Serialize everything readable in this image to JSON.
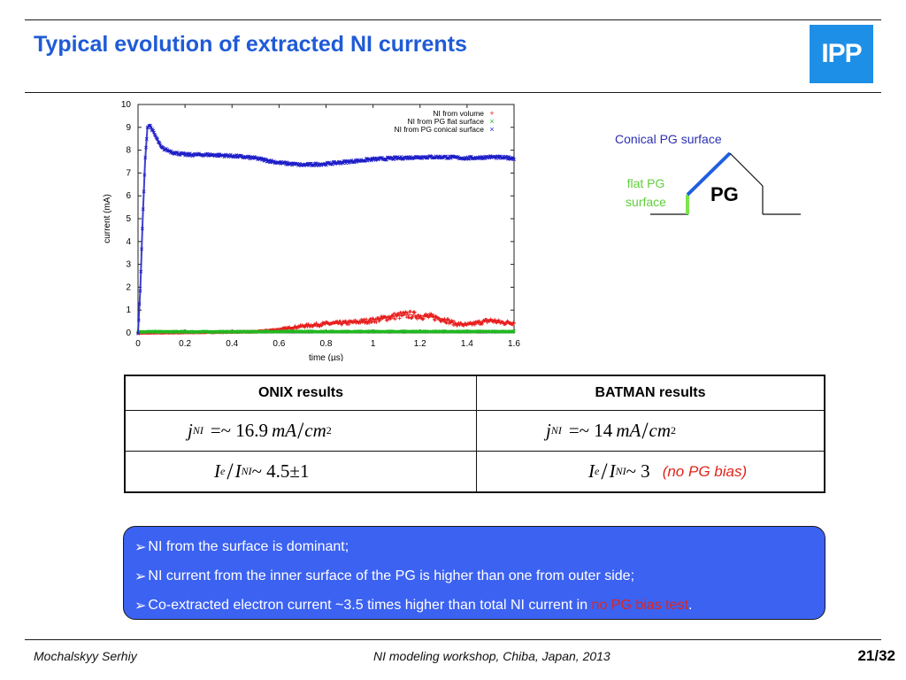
{
  "slide": {
    "title": "Typical evolution of extracted NI currents",
    "logo_text": "IPP"
  },
  "chart_data": {
    "type": "scatter",
    "xlabel": "time (µs)",
    "ylabel": "current (mA)",
    "xlim": [
      0,
      1.6
    ],
    "ylim": [
      0,
      10
    ],
    "xticks": [
      "0",
      "0.2",
      "0.4",
      "0.6",
      "0.8",
      "1",
      "1.2",
      "1.4",
      "1.6"
    ],
    "yticks": [
      "0",
      "1",
      "2",
      "3",
      "4",
      "5",
      "6",
      "7",
      "8",
      "9",
      "10"
    ],
    "legend_position": "top-right",
    "series": [
      {
        "name": "NI from volume",
        "marker": "+",
        "color": "#e81e1e",
        "x": [
          0.0,
          0.5,
          0.6,
          0.7,
          0.8,
          0.9,
          1.0,
          1.1,
          1.15,
          1.2,
          1.25,
          1.3,
          1.35,
          1.4,
          1.45,
          1.5,
          1.55,
          1.6
        ],
        "y": [
          0.0,
          0.05,
          0.15,
          0.3,
          0.4,
          0.45,
          0.55,
          0.75,
          0.8,
          0.75,
          0.7,
          0.6,
          0.4,
          0.35,
          0.45,
          0.55,
          0.45,
          0.45
        ]
      },
      {
        "name": "NI from PG flat surface",
        "marker": "x",
        "color": "#22b822",
        "x": [
          0.0,
          0.2,
          0.4,
          0.6,
          0.8,
          1.0,
          1.2,
          1.4,
          1.6
        ],
        "y": [
          0.05,
          0.05,
          0.05,
          0.06,
          0.06,
          0.06,
          0.06,
          0.06,
          0.06
        ]
      },
      {
        "name": "NI from PG conical surface",
        "marker": "x",
        "color": "#1e1ec8",
        "x": [
          0.0,
          0.01,
          0.02,
          0.03,
          0.04,
          0.05,
          0.08,
          0.1,
          0.15,
          0.2,
          0.3,
          0.4,
          0.5,
          0.6,
          0.7,
          0.8,
          0.9,
          1.0,
          1.1,
          1.2,
          1.3,
          1.4,
          1.5,
          1.6
        ],
        "y": [
          0.0,
          2.0,
          5.0,
          7.5,
          9.0,
          9.1,
          8.5,
          8.1,
          7.9,
          7.8,
          7.8,
          7.75,
          7.65,
          7.45,
          7.35,
          7.4,
          7.5,
          7.6,
          7.65,
          7.7,
          7.7,
          7.65,
          7.7,
          7.65
        ]
      }
    ]
  },
  "diagram": {
    "conical_label": "Conical PG surface",
    "flat_label_line1": "flat PG",
    "flat_label_line2": "surface",
    "pg_label": "PG"
  },
  "table": {
    "headers": [
      "ONIX results",
      "BATMAN results"
    ],
    "onix_j": {
      "j": "j",
      "sub": "NI",
      "value": "=~ 16.9",
      "unit": "mA",
      "per": "cm",
      "exp": "2"
    },
    "batman_j": {
      "j": "j",
      "sub": "NI",
      "value": "=~ 14",
      "unit": "mA",
      "per": "cm",
      "exp": "2"
    },
    "onix_ratio": {
      "ie": "I",
      "ie_sub": "e",
      "ini": "I",
      "ini_sub": "NI",
      "value": "~ 4.5±1"
    },
    "batman_ratio": {
      "ie": "I",
      "ie_sub": "e",
      "ini": "I",
      "ini_sub": "NI",
      "value": "~ 3"
    },
    "batman_note": "(no PG bias)"
  },
  "bullets": {
    "marker": "➢",
    "b1": "NI from the surface is dominant;",
    "b2": "NI current from the inner surface of the PG is higher than one from outer side;",
    "b3_text": "Co-extracted electron current ~3.5 times higher than total NI current in ",
    "b3_highlight": "no PG bias test",
    "b3_end": "."
  },
  "footer": {
    "author": "Mochalskyy Serhiy",
    "event": "NI modeling workshop,  Chiba, Japan, 2013",
    "page": "21/32"
  },
  "colors": {
    "title": "#1f5bd6",
    "logo": "#1e8fe6",
    "bullet_box": "#3c62f2",
    "highlight": "#e32418"
  }
}
